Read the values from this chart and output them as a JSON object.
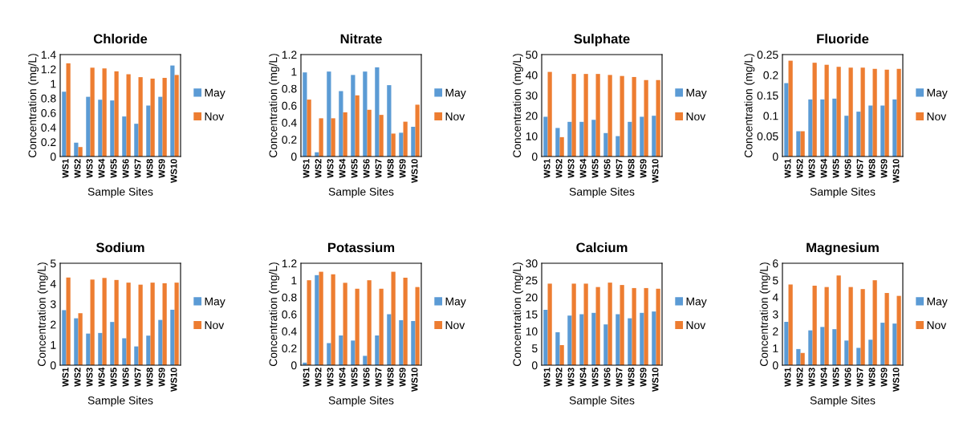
{
  "chart_data": [
    {
      "type": "bar",
      "title": "Chloride",
      "xlabel": "Sample Sites",
      "ylabel": "Concentration (mg/L)",
      "categories": [
        "WS1",
        "WS2",
        "WS3",
        "WS4",
        "WS5",
        "WS6",
        "WS7",
        "WS8",
        "WS9",
        "WS10"
      ],
      "ylim": [
        0,
        1.4
      ],
      "yticks": [
        0,
        0.2,
        0.4,
        0.6,
        0.8,
        1,
        1.2,
        1.4
      ],
      "legend": "right",
      "series": [
        {
          "name": "May",
          "color": "#5b9bd5",
          "values": [
            0.89,
            0.19,
            0.82,
            0.78,
            0.77,
            0.55,
            0.45,
            0.7,
            0.82,
            1.25
          ]
        },
        {
          "name": "Nov",
          "color": "#ed7d31",
          "values": [
            1.28,
            0.13,
            1.22,
            1.21,
            1.17,
            1.13,
            1.09,
            1.07,
            1.08,
            1.12
          ]
        }
      ]
    },
    {
      "type": "bar",
      "title": "Nitrate",
      "xlabel": "Sample Sites",
      "ylabel": "Concentration (mg/L)",
      "categories": [
        "WS1",
        "WS2",
        "WS3",
        "WS4",
        "WS5",
        "WS6",
        "WS7",
        "WS8",
        "WS9",
        "WS10"
      ],
      "ylim": [
        0,
        1.2
      ],
      "yticks": [
        0,
        0.2,
        0.4,
        0.6,
        0.8,
        1,
        1.2
      ],
      "legend": "right",
      "series": [
        {
          "name": "May",
          "color": "#5b9bd5",
          "values": [
            0.99,
            0.05,
            1.0,
            0.77,
            0.96,
            1.0,
            1.05,
            0.84,
            0.28,
            0.35
          ]
        },
        {
          "name": "Nov",
          "color": "#ed7d31",
          "values": [
            0.67,
            0.45,
            0.45,
            0.52,
            0.72,
            0.55,
            0.49,
            0.27,
            0.41,
            0.61
          ]
        }
      ]
    },
    {
      "type": "bar",
      "title": "Sulphate",
      "xlabel": "Sample Sites",
      "ylabel": "Concentration (mg/L)",
      "categories": [
        "WS1",
        "WS2",
        "WS3",
        "WS4",
        "WS5",
        "WS6",
        "WS7",
        "WS8",
        "WS9",
        "WS10"
      ],
      "ylim": [
        0,
        50
      ],
      "yticks": [
        0,
        10,
        20,
        30,
        40,
        50
      ],
      "legend": "right",
      "series": [
        {
          "name": "May",
          "color": "#5b9bd5",
          "values": [
            19.5,
            14,
            17,
            17,
            18,
            11.5,
            10,
            17,
            19.5,
            20
          ]
        },
        {
          "name": "Nov",
          "color": "#ed7d31",
          "values": [
            41.5,
            9.5,
            40.5,
            40.5,
            40.5,
            40,
            39.5,
            39,
            37.5,
            37.5
          ]
        }
      ]
    },
    {
      "type": "bar",
      "title": "Fluoride",
      "xlabel": "Sample Sites",
      "ylabel": "Concentration (mg/L)",
      "categories": [
        "WS1",
        "WS2",
        "WS3",
        "WS4",
        "WS5",
        "WS6",
        "WS7",
        "WS8",
        "WS9",
        "WS10"
      ],
      "ylim": [
        0,
        0.25
      ],
      "yticks": [
        0,
        0.05,
        0.1,
        0.15,
        0.2,
        0.25
      ],
      "legend": "right",
      "series": [
        {
          "name": "May",
          "color": "#5b9bd5",
          "values": [
            0.18,
            0.062,
            0.14,
            0.14,
            0.142,
            0.1,
            0.11,
            0.125,
            0.125,
            0.14
          ]
        },
        {
          "name": "Nov",
          "color": "#ed7d31",
          "values": [
            0.235,
            0.062,
            0.23,
            0.225,
            0.22,
            0.218,
            0.218,
            0.215,
            0.213,
            0.215
          ]
        }
      ]
    },
    {
      "type": "bar",
      "title": "Sodium",
      "xlabel": "Sample Sites",
      "ylabel": "Concentration (mg/L)",
      "categories": [
        "WS1",
        "WS2",
        "WS3",
        "WS4",
        "WS5",
        "WS6",
        "WS7",
        "WS8",
        "WS9",
        "WS10"
      ],
      "ylim": [
        0,
        5
      ],
      "yticks": [
        0,
        1,
        2,
        3,
        4,
        5
      ],
      "legend": "right",
      "series": [
        {
          "name": "May",
          "color": "#5b9bd5",
          "values": [
            2.7,
            2.3,
            1.55,
            1.58,
            2.12,
            1.32,
            0.92,
            1.45,
            2.22,
            2.72
          ]
        },
        {
          "name": "Nov",
          "color": "#ed7d31",
          "values": [
            4.3,
            2.55,
            4.2,
            4.28,
            4.18,
            4.05,
            3.95,
            4.05,
            4.02,
            4.05
          ]
        }
      ]
    },
    {
      "type": "bar",
      "title": "Potassium",
      "xlabel": "Sample Sites",
      "ylabel": "Concentration (mg/L)",
      "categories": [
        "WS1",
        "WS2",
        "WS3",
        "WS4",
        "WS5",
        "WS6",
        "WS7",
        "WS8",
        "WS9",
        "WS10"
      ],
      "ylim": [
        0,
        1.2
      ],
      "yticks": [
        0,
        0.2,
        0.4,
        0.6,
        0.8,
        1,
        1.2
      ],
      "legend": "right",
      "series": [
        {
          "name": "May",
          "color": "#5b9bd5",
          "values": [
            0.03,
            1.06,
            0.26,
            0.35,
            0.29,
            0.11,
            0.35,
            0.6,
            0.53,
            0.52
          ]
        },
        {
          "name": "Nov",
          "color": "#ed7d31",
          "values": [
            1.0,
            1.1,
            1.07,
            0.97,
            0.9,
            1.0,
            0.9,
            1.1,
            1.03,
            0.92
          ]
        }
      ]
    },
    {
      "type": "bar",
      "title": "Calcium",
      "xlabel": "Sample Sites",
      "ylabel": "Concentration (mg/L)",
      "categories": [
        "WS1",
        "WS2",
        "WS3",
        "WS4",
        "WS5",
        "WS6",
        "WS7",
        "WS8",
        "WS9",
        "WS10"
      ],
      "ylim": [
        0,
        30
      ],
      "yticks": [
        0,
        5,
        10,
        15,
        20,
        25,
        30
      ],
      "legend": "right",
      "series": [
        {
          "name": "May",
          "color": "#5b9bd5",
          "values": [
            16.3,
            9.7,
            14.6,
            15,
            15.4,
            12,
            15,
            13.8,
            15.4,
            15.8
          ]
        },
        {
          "name": "Nov",
          "color": "#ed7d31",
          "values": [
            24,
            5.9,
            24,
            24,
            23,
            24.3,
            23.6,
            22.7,
            22.7,
            22.5
          ]
        }
      ]
    },
    {
      "type": "bar",
      "title": "Magnesium",
      "xlabel": "Sample Sites",
      "ylabel": "Concentration (mg/L)",
      "categories": [
        "WS1",
        "WS2",
        "WS3",
        "WS4",
        "WS5",
        "WS6",
        "WS7",
        "WS8",
        "WS9",
        "WS10"
      ],
      "ylim": [
        0,
        6
      ],
      "yticks": [
        0,
        1,
        2,
        3,
        4,
        5,
        6
      ],
      "legend": "right",
      "series": [
        {
          "name": "May",
          "color": "#5b9bd5",
          "values": [
            2.55,
            0.95,
            2.05,
            2.25,
            2.12,
            1.45,
            1.02,
            1.5,
            2.5,
            2.45
          ]
        },
        {
          "name": "Nov",
          "color": "#ed7d31",
          "values": [
            4.75,
            0.72,
            4.68,
            4.6,
            5.28,
            4.6,
            4.48,
            5.0,
            4.25,
            4.08
          ]
        }
      ]
    }
  ]
}
